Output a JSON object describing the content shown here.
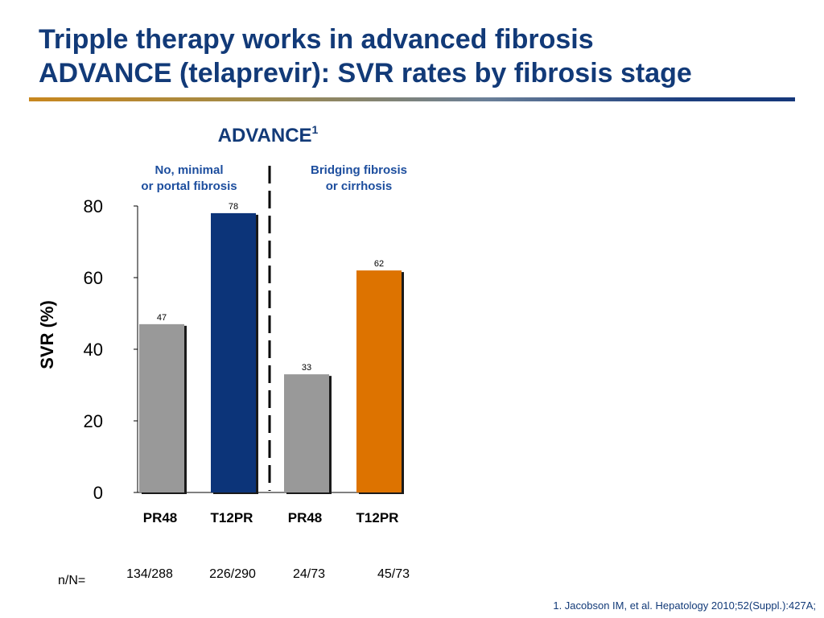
{
  "slide": {
    "title_line1": "Tripple therapy works in advanced fibrosis",
    "title_line2": "ADVANCE (telaprevir): SVR rates by fibrosis stage",
    "footnote": "1. Jacobson IM, et al. Hepatology 2010;52(Suppl.):427A;"
  },
  "chart_data": {
    "type": "bar",
    "title": "ADVANCE",
    "title_superscript": "1",
    "ylabel": "SVR (%)",
    "ylim": [
      0,
      80
    ],
    "yticks": [
      0,
      20,
      40,
      60,
      80
    ],
    "categories": [
      "PR48",
      "T12PR",
      "PR48",
      "T12PR"
    ],
    "values": [
      47,
      78,
      33,
      62
    ],
    "bar_colors": [
      "#999999",
      "#0c3479",
      "#999999",
      "#dd7300"
    ],
    "groups": [
      {
        "label_line1": "No, minimal",
        "label_line2": "or portal fibrosis"
      },
      {
        "label_line1": "Bridging fibrosis",
        "label_line2": "or cirrhosis"
      }
    ],
    "n_label": "n/N=",
    "n_values": [
      "134/288",
      "226/290",
      "24/73",
      "45/73"
    ],
    "group_label_color": "#1d4e9e"
  }
}
